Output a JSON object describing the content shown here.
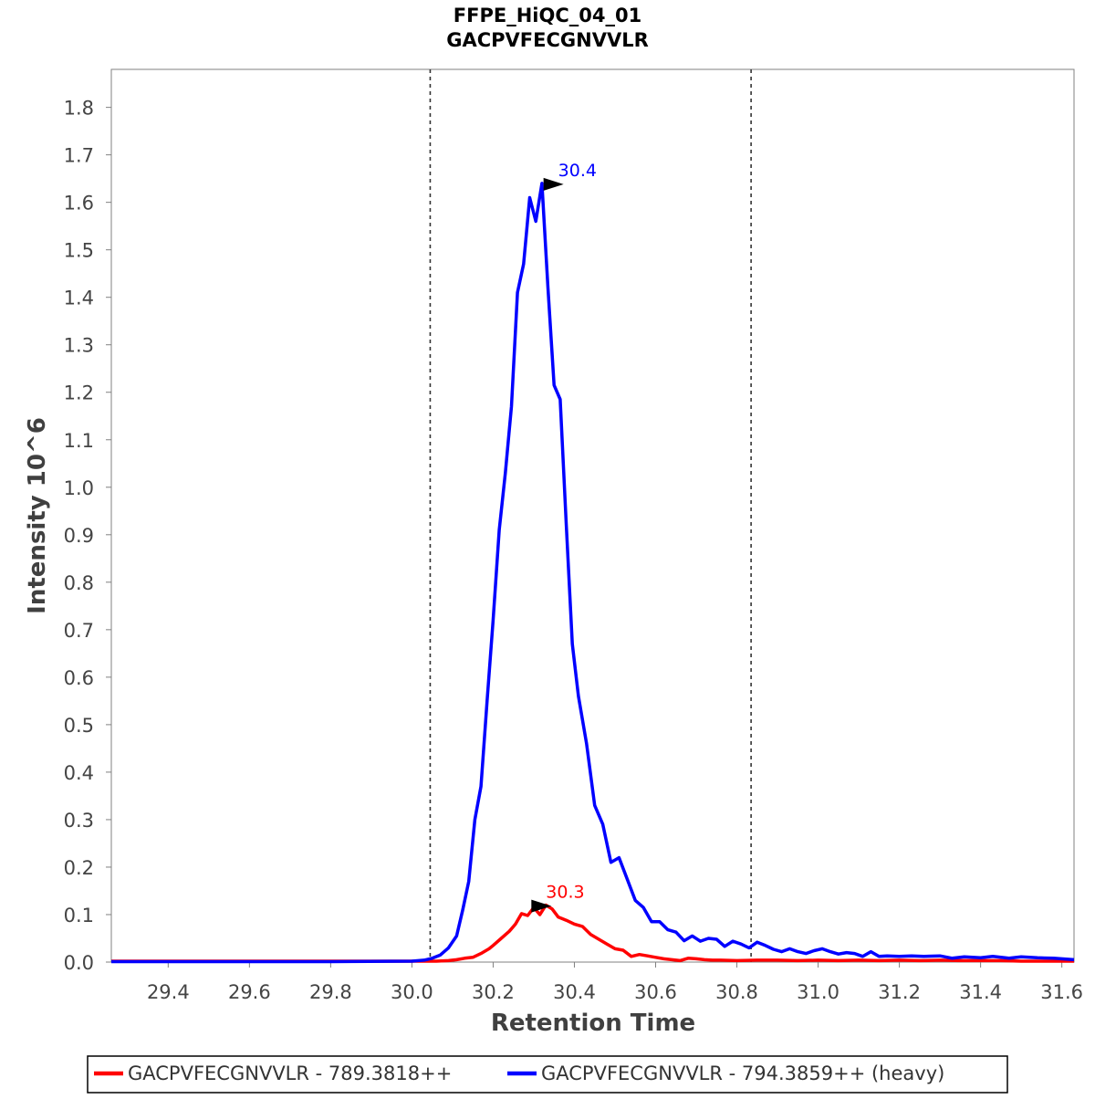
{
  "chart_data": {
    "type": "line",
    "title": "FFPE_HiQC_04_01",
    "subtitle": "GACPVFECGNVVLR",
    "xlabel": "Retention Time",
    "ylabel": "Intensity 10^6",
    "xlim": [
      29.26,
      31.63
    ],
    "ylim": [
      0.0,
      1.88
    ],
    "xticks": [
      "29.4",
      "29.6",
      "29.8",
      "30.0",
      "30.2",
      "30.4",
      "30.6",
      "30.8",
      "31.0",
      "31.2",
      "31.4",
      "31.6"
    ],
    "xtick_values": [
      29.4,
      29.6,
      29.8,
      30.0,
      30.2,
      30.4,
      30.6,
      30.8,
      31.0,
      31.2,
      31.4,
      31.6
    ],
    "yticks": [
      "0.0",
      "0.1",
      "0.2",
      "0.3",
      "0.4",
      "0.5",
      "0.6",
      "0.7",
      "0.8",
      "0.9",
      "1.0",
      "1.1",
      "1.2",
      "1.3",
      "1.4",
      "1.5",
      "1.6",
      "1.7",
      "1.8"
    ],
    "ytick_values": [
      0.0,
      0.1,
      0.2,
      0.3,
      0.4,
      0.5,
      0.6,
      0.7,
      0.8,
      0.9,
      1.0,
      1.1,
      1.2,
      1.3,
      1.4,
      1.5,
      1.6,
      1.7,
      1.8
    ],
    "grid": false,
    "legend_position": "bottom",
    "integration_boundaries": [
      30.045,
      30.835
    ],
    "series": [
      {
        "name": "GACPVFECGNVVLR - 789.3818++",
        "color": "#ff0000",
        "peak_label": "30.3",
        "peak": [
          30.33,
          0.12
        ],
        "points": [
          [
            29.26,
            0.002
          ],
          [
            29.3,
            0.002
          ],
          [
            29.4,
            0.002
          ],
          [
            29.5,
            0.002
          ],
          [
            29.6,
            0.002
          ],
          [
            29.7,
            0.002
          ],
          [
            29.8,
            0.002
          ],
          [
            29.9,
            0.002
          ],
          [
            30.0,
            0.002
          ],
          [
            30.06,
            0.002
          ],
          [
            30.09,
            0.003
          ],
          [
            30.11,
            0.005
          ],
          [
            30.13,
            0.008
          ],
          [
            30.15,
            0.01
          ],
          [
            30.17,
            0.018
          ],
          [
            30.19,
            0.028
          ],
          [
            30.2,
            0.035
          ],
          [
            30.22,
            0.05
          ],
          [
            30.24,
            0.065
          ],
          [
            30.255,
            0.08
          ],
          [
            30.27,
            0.102
          ],
          [
            30.285,
            0.098
          ],
          [
            30.3,
            0.115
          ],
          [
            30.315,
            0.1
          ],
          [
            30.33,
            0.12
          ],
          [
            30.345,
            0.112
          ],
          [
            30.36,
            0.095
          ],
          [
            30.38,
            0.088
          ],
          [
            30.4,
            0.08
          ],
          [
            30.42,
            0.075
          ],
          [
            30.44,
            0.058
          ],
          [
            30.46,
            0.048
          ],
          [
            30.48,
            0.038
          ],
          [
            30.5,
            0.028
          ],
          [
            30.52,
            0.025
          ],
          [
            30.54,
            0.012
          ],
          [
            30.56,
            0.016
          ],
          [
            30.58,
            0.013
          ],
          [
            30.6,
            0.01
          ],
          [
            30.62,
            0.007
          ],
          [
            30.64,
            0.005
          ],
          [
            30.66,
            0.003
          ],
          [
            30.68,
            0.008
          ],
          [
            30.7,
            0.007
          ],
          [
            30.72,
            0.005
          ],
          [
            30.74,
            0.004
          ],
          [
            30.76,
            0.004
          ],
          [
            30.8,
            0.003
          ],
          [
            30.85,
            0.004
          ],
          [
            30.9,
            0.004
          ],
          [
            30.95,
            0.003
          ],
          [
            31.0,
            0.004
          ],
          [
            31.05,
            0.003
          ],
          [
            31.1,
            0.004
          ],
          [
            31.15,
            0.003
          ],
          [
            31.2,
            0.004
          ],
          [
            31.25,
            0.003
          ],
          [
            31.3,
            0.004
          ],
          [
            31.35,
            0.003
          ],
          [
            31.4,
            0.003
          ],
          [
            31.45,
            0.003
          ],
          [
            31.5,
            0.002
          ],
          [
            31.55,
            0.002
          ],
          [
            31.63,
            0.002
          ]
        ]
      },
      {
        "name": "GACPVFECGNVVLR - 794.3859++ (heavy)",
        "color": "#0000ff",
        "peak_label": "30.4",
        "peak": [
          30.36,
          1.64
        ],
        "points": [
          [
            29.26,
            0.001
          ],
          [
            29.4,
            0.001
          ],
          [
            29.6,
            0.001
          ],
          [
            29.8,
            0.001
          ],
          [
            30.0,
            0.002
          ],
          [
            30.03,
            0.004
          ],
          [
            30.05,
            0.008
          ],
          [
            30.07,
            0.015
          ],
          [
            30.09,
            0.03
          ],
          [
            30.11,
            0.055
          ],
          [
            30.125,
            0.11
          ],
          [
            30.14,
            0.17
          ],
          [
            30.155,
            0.3
          ],
          [
            30.17,
            0.37
          ],
          [
            30.185,
            0.55
          ],
          [
            30.2,
            0.72
          ],
          [
            30.215,
            0.91
          ],
          [
            30.23,
            1.03
          ],
          [
            30.245,
            1.17
          ],
          [
            30.26,
            1.41
          ],
          [
            30.275,
            1.47
          ],
          [
            30.29,
            1.61
          ],
          [
            30.305,
            1.56
          ],
          [
            30.32,
            1.64
          ],
          [
            30.335,
            1.42
          ],
          [
            30.35,
            1.215
          ],
          [
            30.365,
            1.185
          ],
          [
            30.38,
            0.92
          ],
          [
            30.395,
            0.67
          ],
          [
            30.41,
            0.56
          ],
          [
            30.43,
            0.46
          ],
          [
            30.45,
            0.33
          ],
          [
            30.47,
            0.29
          ],
          [
            30.49,
            0.21
          ],
          [
            30.51,
            0.22
          ],
          [
            30.53,
            0.175
          ],
          [
            30.55,
            0.13
          ],
          [
            30.57,
            0.115
          ],
          [
            30.59,
            0.085
          ],
          [
            30.61,
            0.085
          ],
          [
            30.63,
            0.068
          ],
          [
            30.65,
            0.063
          ],
          [
            30.67,
            0.045
          ],
          [
            30.69,
            0.055
          ],
          [
            30.71,
            0.044
          ],
          [
            30.73,
            0.05
          ],
          [
            30.75,
            0.048
          ],
          [
            30.77,
            0.033
          ],
          [
            30.79,
            0.044
          ],
          [
            30.81,
            0.038
          ],
          [
            30.83,
            0.03
          ],
          [
            30.85,
            0.042
          ],
          [
            30.87,
            0.035
          ],
          [
            30.89,
            0.027
          ],
          [
            30.91,
            0.022
          ],
          [
            30.93,
            0.028
          ],
          [
            30.95,
            0.022
          ],
          [
            30.97,
            0.018
          ],
          [
            30.99,
            0.024
          ],
          [
            31.01,
            0.028
          ],
          [
            31.03,
            0.022
          ],
          [
            31.05,
            0.017
          ],
          [
            31.07,
            0.02
          ],
          [
            31.09,
            0.018
          ],
          [
            31.11,
            0.012
          ],
          [
            31.13,
            0.022
          ],
          [
            31.15,
            0.012
          ],
          [
            31.17,
            0.013
          ],
          [
            31.2,
            0.012
          ],
          [
            31.23,
            0.013
          ],
          [
            31.26,
            0.012
          ],
          [
            31.3,
            0.013
          ],
          [
            31.33,
            0.008
          ],
          [
            31.36,
            0.011
          ],
          [
            31.4,
            0.009
          ],
          [
            31.43,
            0.012
          ],
          [
            31.47,
            0.008
          ],
          [
            31.5,
            0.011
          ],
          [
            31.54,
            0.009
          ],
          [
            31.58,
            0.008
          ],
          [
            31.63,
            0.005
          ]
        ]
      }
    ]
  }
}
